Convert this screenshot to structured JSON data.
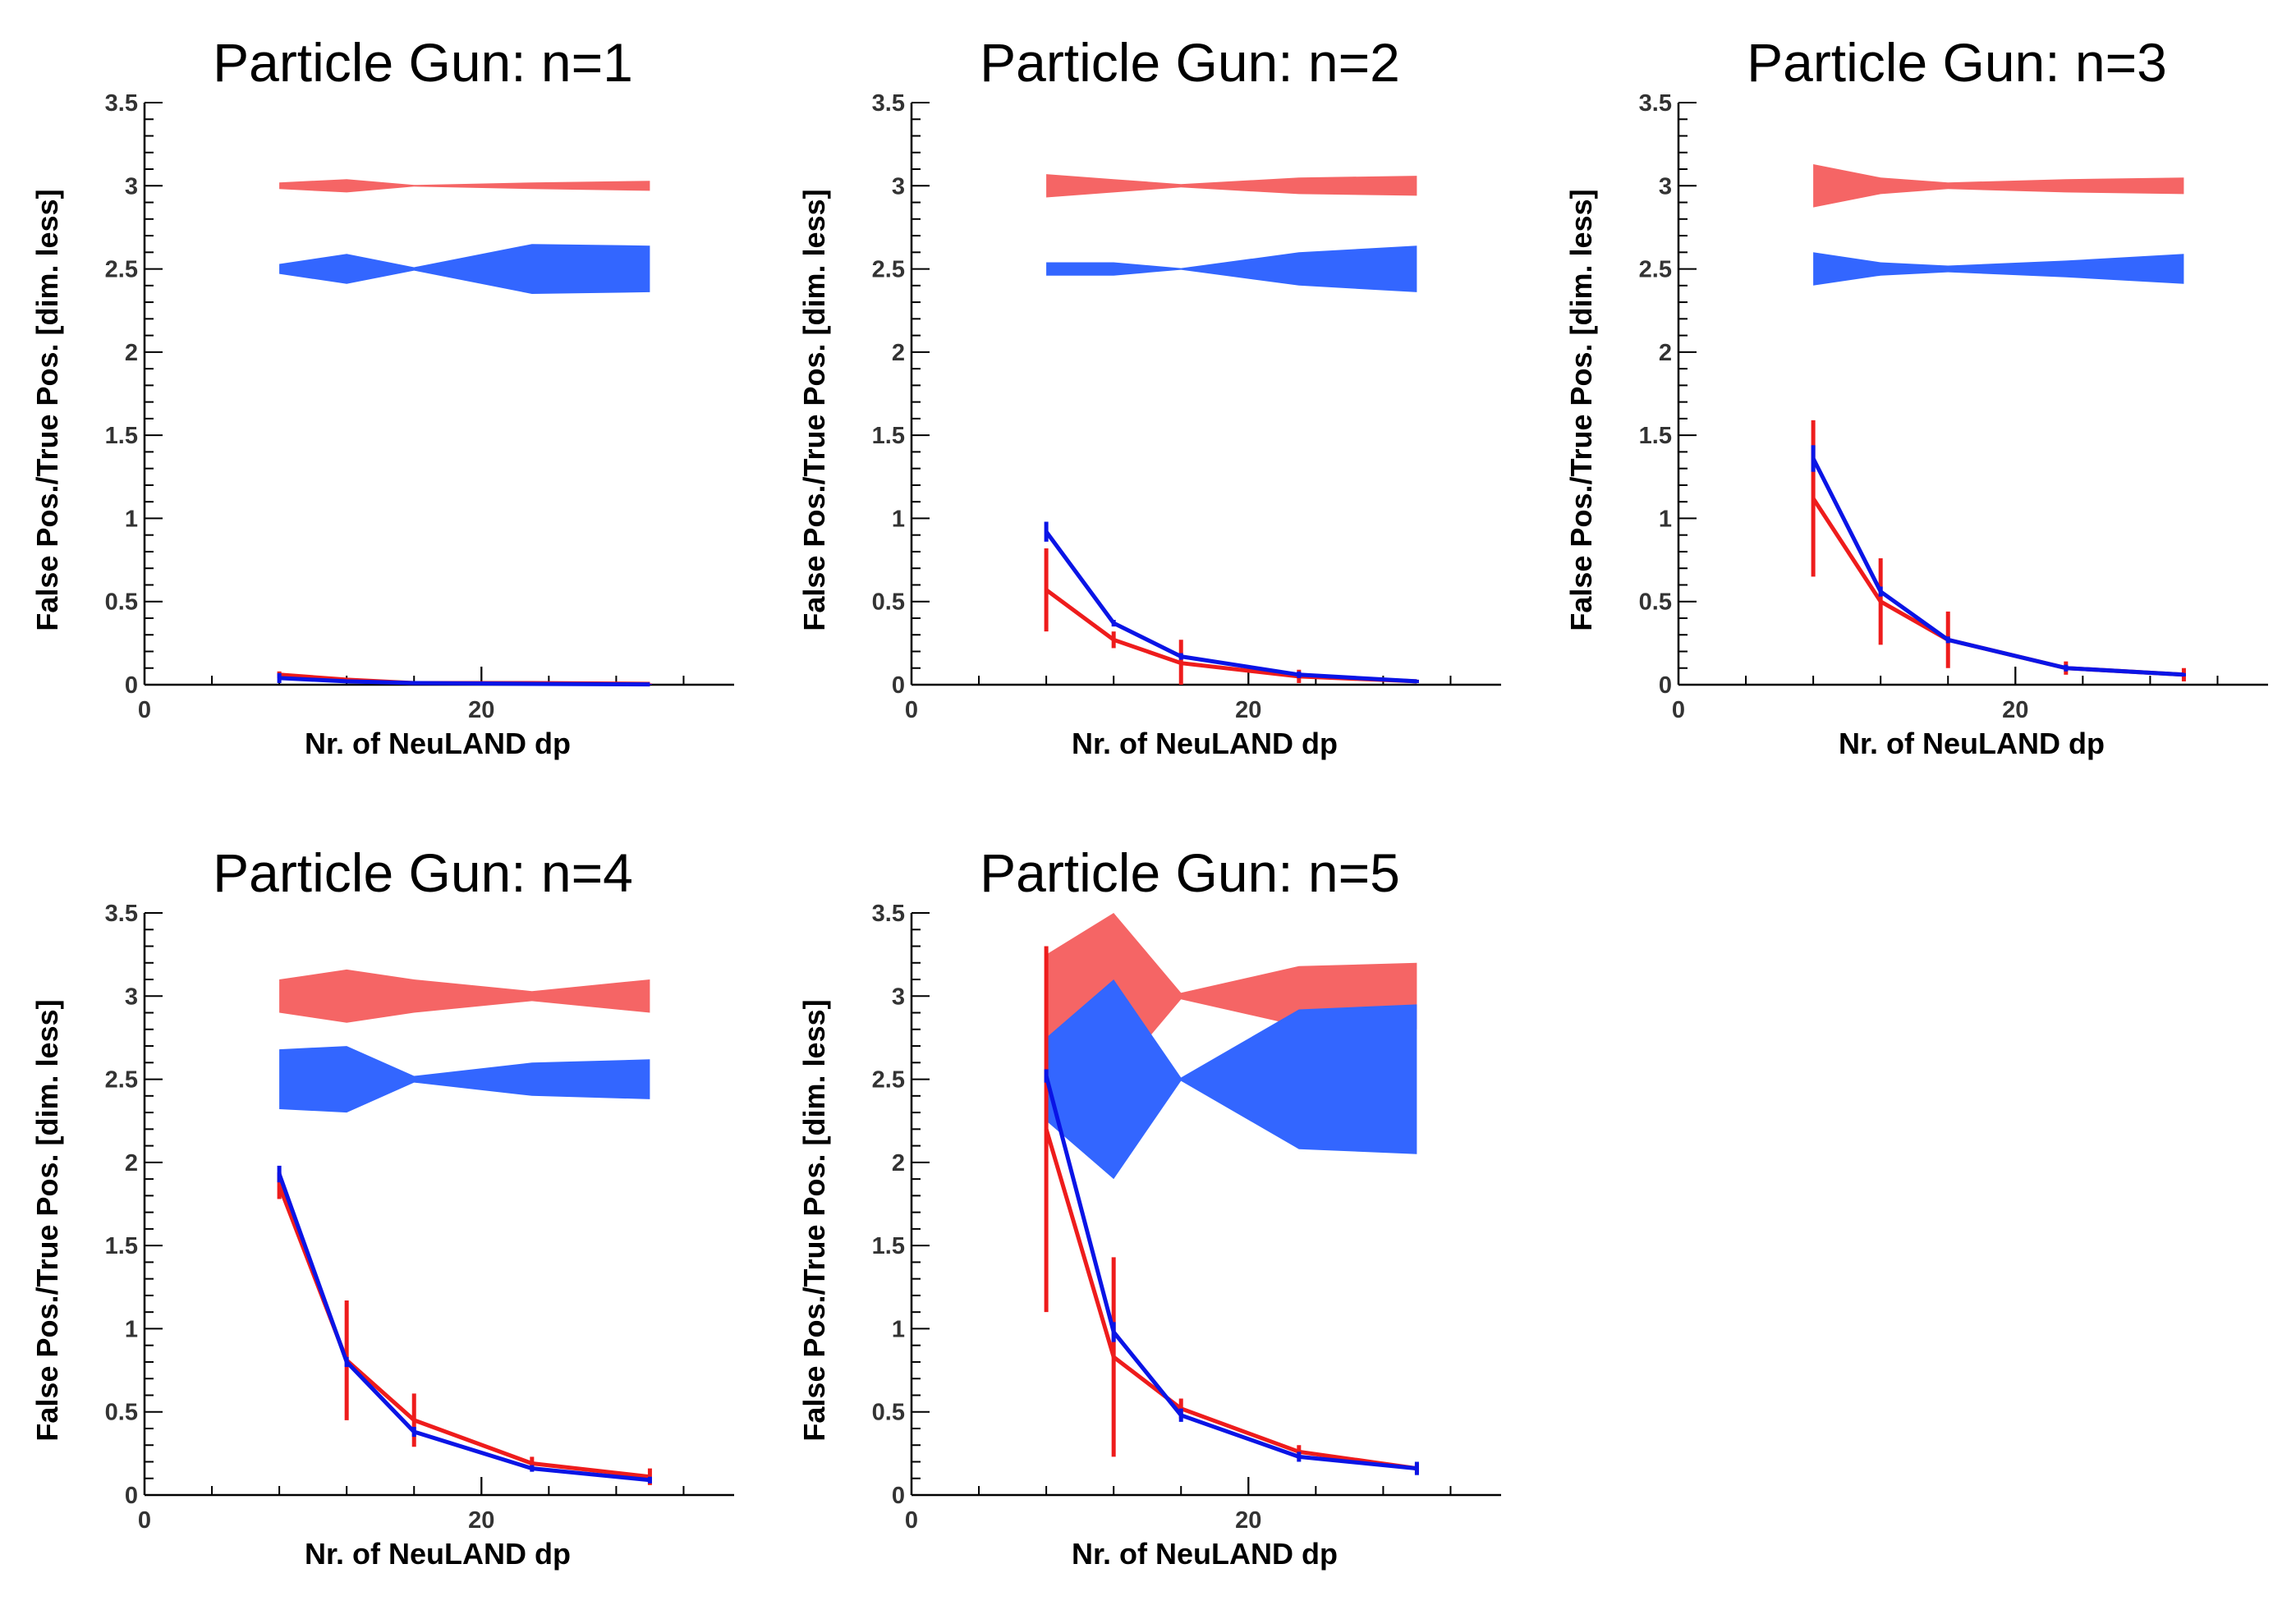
{
  "colors": {
    "red_line": "#ee1c1c",
    "blue_line": "#0a14e6",
    "red_band": "#f56565",
    "blue_band": "#3366ff",
    "axis": "#000000",
    "tick_text": "#333333"
  },
  "chart_data": [
    {
      "type": "line",
      "title": "Particle Gun: n=1",
      "xlabel": "Nr. of NeuLAND dp",
      "ylabel": "False Pos./True Pos. [dim. less]",
      "xlim": [
        0,
        35
      ],
      "ylim": [
        0,
        3.5
      ],
      "x_ticks": [
        "0",
        "20"
      ],
      "y_ticks": [
        "0",
        "0.5",
        "1",
        "1.5",
        "2",
        "2.5",
        "3",
        "3.5"
      ],
      "grid": false,
      "x": [
        8,
        12,
        16,
        23,
        30
      ],
      "series": [
        {
          "color": "red",
          "values": [
            0.06,
            0.03,
            0.01,
            0.01,
            0.005
          ],
          "errors": [
            0.02,
            0.01,
            0.005,
            0.005,
            0.003
          ]
        },
        {
          "color": "blue",
          "values": [
            0.04,
            0.02,
            0.01,
            0.005,
            0.002
          ],
          "errors": [
            0.03,
            0.01,
            0.005,
            0.005,
            0.003
          ]
        }
      ],
      "bands": [
        {
          "color": "red",
          "center": 3.0,
          "half_width": [
            0.02,
            0.04,
            0.005,
            0.02,
            0.03
          ]
        },
        {
          "color": "blue",
          "center": 2.5,
          "half_width": [
            0.03,
            0.09,
            0.01,
            0.15,
            0.14
          ]
        }
      ]
    },
    {
      "type": "line",
      "title": "Particle Gun: n=2",
      "xlabel": "Nr. of NeuLAND dp",
      "ylabel": "False Pos./True Pos. [dim. less]",
      "xlim": [
        0,
        35
      ],
      "ylim": [
        0,
        3.5
      ],
      "x_ticks": [
        "0",
        "20"
      ],
      "y_ticks": [
        "0",
        "0.5",
        "1",
        "1.5",
        "2",
        "2.5",
        "3",
        "3.5"
      ],
      "grid": false,
      "x": [
        8,
        12,
        16,
        23,
        30
      ],
      "series": [
        {
          "color": "red",
          "values": [
            0.57,
            0.27,
            0.13,
            0.05,
            0.02
          ],
          "errors": [
            0.25,
            0.05,
            0.14,
            0.04,
            0.01
          ]
        },
        {
          "color": "blue",
          "values": [
            0.92,
            0.37,
            0.17,
            0.06,
            0.02
          ],
          "errors": [
            0.06,
            0.02,
            0.02,
            0.02,
            0.01
          ]
        }
      ],
      "bands": [
        {
          "color": "red",
          "center": 3.0,
          "half_width": [
            0.07,
            0.04,
            0.01,
            0.05,
            0.06
          ]
        },
        {
          "color": "blue",
          "center": 2.5,
          "half_width": [
            0.04,
            0.04,
            0.005,
            0.1,
            0.14
          ]
        }
      ]
    },
    {
      "type": "line",
      "title": "Particle Gun: n=3",
      "xlabel": "Nr. of NeuLAND dp",
      "ylabel": "False Pos./True Pos. [dim. less]",
      "xlim": [
        0,
        35
      ],
      "ylim": [
        0,
        3.5
      ],
      "x_ticks": [
        "0",
        "20"
      ],
      "y_ticks": [
        "0",
        "0.5",
        "1",
        "1.5",
        "2",
        "2.5",
        "3",
        "3.5"
      ],
      "grid": false,
      "x": [
        8,
        12,
        16,
        23,
        30
      ],
      "series": [
        {
          "color": "red",
          "values": [
            1.12,
            0.5,
            0.27,
            0.1,
            0.06
          ],
          "errors": [
            0.47,
            0.26,
            0.17,
            0.04,
            0.04
          ]
        },
        {
          "color": "blue",
          "values": [
            1.36,
            0.56,
            0.27,
            0.1,
            0.06
          ],
          "errors": [
            0.08,
            0.03,
            0.02,
            0.02,
            0.01
          ]
        }
      ],
      "bands": [
        {
          "color": "red",
          "center": 3.0,
          "half_width": [
            0.13,
            0.05,
            0.02,
            0.04,
            0.05
          ]
        },
        {
          "color": "blue",
          "center": 2.5,
          "half_width": [
            0.1,
            0.04,
            0.02,
            0.05,
            0.09
          ]
        }
      ]
    },
    {
      "type": "line",
      "title": "Particle Gun: n=4",
      "xlabel": "Nr. of NeuLAND dp",
      "ylabel": "False Pos./True Pos. [dim. less]",
      "xlim": [
        0,
        35
      ],
      "ylim": [
        0,
        3.5
      ],
      "x_ticks": [
        "0",
        "20"
      ],
      "y_ticks": [
        "0",
        "0.5",
        "1",
        "1.5",
        "2",
        "2.5",
        "3",
        "3.5"
      ],
      "grid": false,
      "x": [
        8,
        12,
        16,
        23,
        30
      ],
      "series": [
        {
          "color": "red",
          "values": [
            1.86,
            0.81,
            0.45,
            0.19,
            0.11
          ],
          "errors": [
            0.08,
            0.36,
            0.16,
            0.04,
            0.05
          ]
        },
        {
          "color": "blue",
          "values": [
            1.93,
            0.8,
            0.38,
            0.16,
            0.09
          ],
          "errors": [
            0.05,
            0.03,
            0.03,
            0.02,
            0.02
          ]
        }
      ],
      "bands": [
        {
          "color": "red",
          "center": 3.0,
          "half_width": [
            0.1,
            0.16,
            0.1,
            0.03,
            0.1
          ]
        },
        {
          "color": "blue",
          "center": 2.5,
          "half_width": [
            0.18,
            0.2,
            0.02,
            0.1,
            0.12
          ]
        }
      ]
    },
    {
      "type": "line",
      "title": "Particle Gun: n=5",
      "xlabel": "Nr. of NeuLAND dp",
      "ylabel": "False Pos./True Pos. [dim. less]",
      "xlim": [
        0,
        35
      ],
      "ylim": [
        0,
        3.5
      ],
      "x_ticks": [
        "0",
        "20"
      ],
      "y_ticks": [
        "0",
        "0.5",
        "1",
        "1.5",
        "2",
        "2.5",
        "3",
        "3.5"
      ],
      "grid": false,
      "x": [
        8,
        12,
        16,
        23,
        30
      ],
      "series": [
        {
          "color": "red",
          "values": [
            2.2,
            0.83,
            0.52,
            0.26,
            0.16
          ],
          "errors": [
            1.1,
            0.6,
            0.06,
            0.04,
            0.03
          ]
        },
        {
          "color": "blue",
          "values": [
            2.52,
            0.98,
            0.48,
            0.23,
            0.16
          ],
          "errors": [
            0.04,
            0.06,
            0.04,
            0.03,
            0.04
          ]
        }
      ],
      "bands": [
        {
          "color": "red",
          "center": 3.0,
          "half_width": [
            0.25,
            0.5,
            0.02,
            0.18,
            0.2
          ]
        },
        {
          "color": "blue",
          "center": 2.5,
          "half_width": [
            0.25,
            0.6,
            0.01,
            0.42,
            0.45
          ]
        }
      ]
    }
  ]
}
